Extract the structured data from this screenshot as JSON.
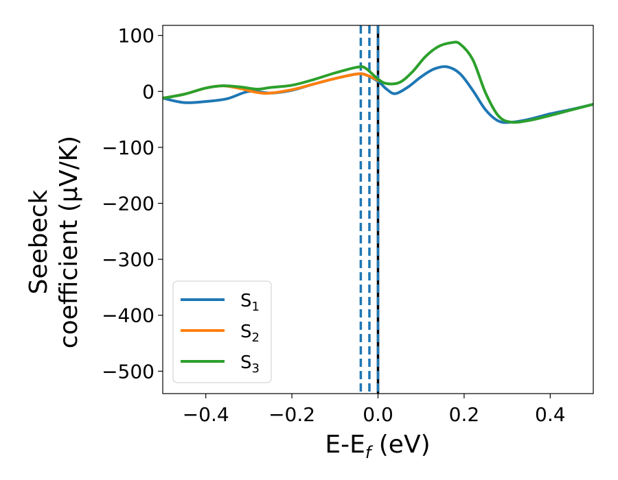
{
  "chart_data": {
    "type": "line",
    "xlabel": "E-E_f (eV)",
    "ylabel_lines": [
      "Seebeck",
      "coefficient  (μV/K)"
    ],
    "xlim": [
      -0.5,
      0.5
    ],
    "ylim": [
      -540,
      118
    ],
    "xticks": [
      -0.4,
      -0.2,
      0.0,
      0.2,
      0.4
    ],
    "xtick_labels": [
      "−0.4",
      "−0.2",
      "0.0",
      "0.2",
      "0.4"
    ],
    "yticks": [
      100,
      0,
      -100,
      -200,
      -300,
      -400,
      -500
    ],
    "ytick_labels": [
      "100",
      "0",
      "−100",
      "−200",
      "−300",
      "−400",
      "−500"
    ],
    "grid": false,
    "legend_position": "lower-left",
    "vertical_lines": [
      {
        "x": -0.04,
        "style": "dashed",
        "color": "#1f77b4"
      },
      {
        "x": -0.02,
        "style": "dashed",
        "color": "#1f77b4"
      },
      {
        "x": 0.0,
        "style": "solid",
        "color": "#000000"
      },
      {
        "x": 0.0,
        "style": "dashed",
        "color": "#1f77b4"
      }
    ],
    "series": [
      {
        "name": "S",
        "subscript": "1",
        "color": "#1f77b4",
        "x": [
          -0.5,
          -0.45,
          -0.4,
          -0.35,
          -0.3,
          -0.25,
          -0.2,
          -0.15,
          -0.1,
          -0.05,
          -0.03,
          0.0,
          0.02,
          0.04,
          0.07,
          0.1,
          0.13,
          0.16,
          0.19,
          0.22,
          0.25,
          0.28,
          0.31,
          0.35,
          0.4,
          0.45,
          0.5
        ],
        "y": [
          -12,
          -20,
          -18,
          -13,
          0,
          -3,
          2,
          13,
          23,
          31,
          30,
          18,
          4,
          -4,
          8,
          26,
          40,
          44,
          32,
          2,
          -33,
          -53,
          -55,
          -50,
          -40,
          -32,
          -23
        ]
      },
      {
        "name": "S",
        "subscript": "2",
        "color": "#ff7f0e",
        "x": [
          -0.5,
          -0.45,
          -0.4,
          -0.36,
          -0.32,
          -0.28,
          -0.25,
          -0.2,
          -0.15,
          -0.1,
          -0.05,
          -0.03,
          0.0
        ],
        "y": [
          -12,
          -5,
          6,
          10,
          5,
          -2,
          -3,
          3,
          13,
          23,
          31,
          30,
          20
        ]
      },
      {
        "name": "S",
        "subscript": "3",
        "color": "#2ca02c",
        "x": [
          -0.5,
          -0.45,
          -0.4,
          -0.36,
          -0.32,
          -0.28,
          -0.25,
          -0.2,
          -0.15,
          -0.1,
          -0.05,
          -0.03,
          0.0,
          0.02,
          0.05,
          0.08,
          0.11,
          0.14,
          0.17,
          0.19,
          0.22,
          0.25,
          0.28,
          0.31,
          0.35,
          0.4,
          0.45,
          0.5
        ],
        "y": [
          -12,
          -5,
          6,
          10,
          8,
          4,
          7,
          11,
          21,
          33,
          43,
          42,
          22,
          14,
          16,
          35,
          62,
          80,
          87,
          85,
          57,
          -3,
          -44,
          -55,
          -52,
          -43,
          -33,
          -23
        ]
      }
    ]
  }
}
